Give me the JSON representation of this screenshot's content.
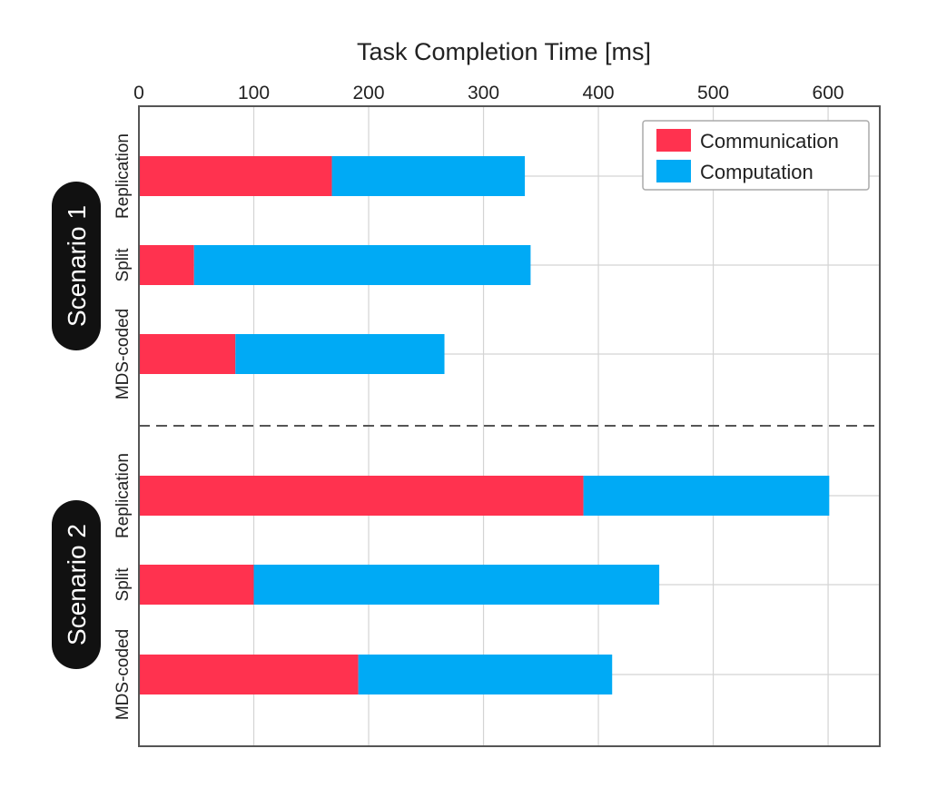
{
  "chart_data": {
    "type": "bar",
    "orientation": "horizontal",
    "stacked": true,
    "title": "Task Completion Time [ms]",
    "xlabel": "Task Completion Time [ms]",
    "xlim": [
      0,
      645
    ],
    "xticks": [
      0,
      100,
      200,
      300,
      400,
      500,
      600
    ],
    "grid": true,
    "legend_position": "top-right",
    "groups": [
      {
        "label": "Scenario 1",
        "categories": [
          "Replication",
          "Split",
          "MDS-coded"
        ]
      },
      {
        "label": "Scenario 2",
        "categories": [
          "Replication",
          "Split",
          "MDS-coded"
        ]
      }
    ],
    "series": [
      {
        "name": "Communication",
        "color": "#ff324f",
        "values": [
          168,
          48,
          84,
          387,
          100,
          191
        ]
      },
      {
        "name": "Computation",
        "color": "#00aaf5",
        "values": [
          168,
          293,
          182,
          214,
          353,
          221
        ]
      }
    ]
  }
}
